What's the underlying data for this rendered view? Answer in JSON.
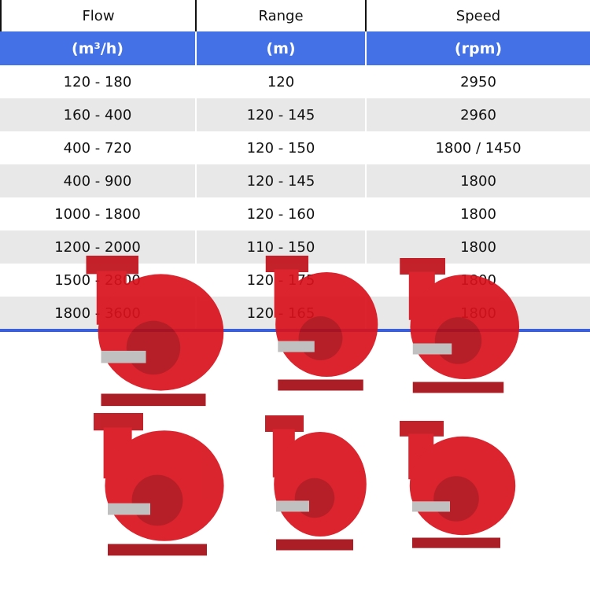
{
  "table": {
    "headers": [
      "Flow",
      "Range",
      "Speed"
    ],
    "units": [
      "(m³/h)",
      "(m)",
      "(rpm)"
    ],
    "rows": [
      [
        "120 - 180",
        "120",
        "2950"
      ],
      [
        "160 - 400",
        "120 - 145",
        "2960"
      ],
      [
        "400 - 720",
        "120 - 150",
        "1800 / 1450"
      ],
      [
        "400 - 900",
        "120 - 145",
        "1800"
      ],
      [
        "1000 - 1800",
        "120 - 160",
        "1800"
      ],
      [
        "1200 - 2000",
        "110 - 150",
        "1800"
      ],
      [
        "1500 - 2800",
        "120 - 175",
        "1800"
      ],
      [
        "1800 - 3600",
        "120 - 165",
        "1800"
      ]
    ]
  },
  "colors": {
    "header_blue": "#4472e6",
    "pump_red": "#d8121c",
    "row_alt": "#e8e8e8"
  },
  "images": [
    "split-case-pump-photo",
    "split-case-pump-photo",
    "split-case-pump-photo",
    "split-case-pump-photo",
    "split-case-pump-photo",
    "end-suction-pump-photo"
  ]
}
